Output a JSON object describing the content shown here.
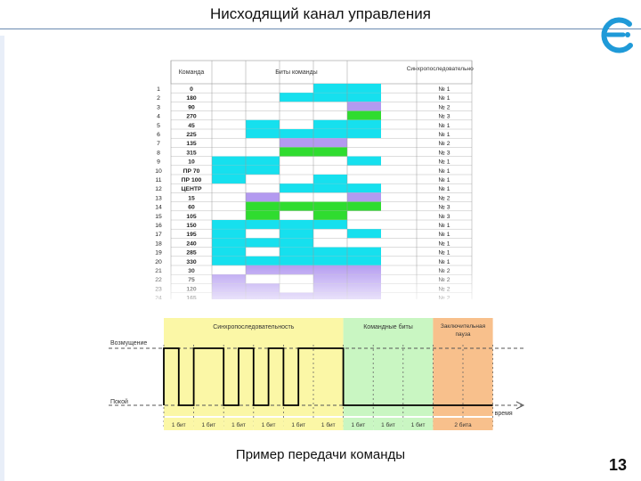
{
  "slide": {
    "title": "Нисходящий канал управления",
    "caption": "Пример передачи команды",
    "page_number": "13"
  },
  "colors": {
    "cyan": "#16e0ee",
    "purple": "#b39af0",
    "green": "#2fdc2f",
    "sync_bg": "#fbf7a6",
    "cmd_bg": "#c9f6c2",
    "pause_bg": "#f8c08c",
    "logo": "#1f9ad8"
  },
  "table": {
    "headers": [
      "Команда",
      "Биты команды",
      "Синхропоследовательность"
    ],
    "rows": [
      {
        "n": "1",
        "cmd": "0",
        "sync": "№ 1",
        "bits": [
          "",
          "",
          "",
          "c",
          "c"
        ]
      },
      {
        "n": "2",
        "cmd": "180",
        "sync": "№ 1",
        "bits": [
          "",
          "",
          "c",
          "c",
          "c"
        ]
      },
      {
        "n": "3",
        "cmd": "90",
        "sync": "№ 2",
        "bits": [
          "",
          "",
          "",
          "",
          "p"
        ]
      },
      {
        "n": "4",
        "cmd": "270",
        "sync": "№ 3",
        "bits": [
          "",
          "",
          "",
          "",
          "g"
        ]
      },
      {
        "n": "5",
        "cmd": "45",
        "sync": "№ 1",
        "bits": [
          "",
          "c",
          "",
          "c",
          "c"
        ]
      },
      {
        "n": "6",
        "cmd": "225",
        "sync": "№ 1",
        "bits": [
          "",
          "c",
          "c",
          "c",
          "c"
        ]
      },
      {
        "n": "7",
        "cmd": "135",
        "sync": "№ 2",
        "bits": [
          "",
          "",
          "p",
          "p",
          ""
        ]
      },
      {
        "n": "8",
        "cmd": "315",
        "sync": "№ 3",
        "bits": [
          "",
          "",
          "g",
          "g",
          ""
        ]
      },
      {
        "n": "9",
        "cmd": "10",
        "sync": "№ 1",
        "bits": [
          "c",
          "c",
          "",
          "",
          "c"
        ]
      },
      {
        "n": "10",
        "cmd": "ПР 70",
        "sync": "№ 1",
        "bits": [
          "c",
          "c",
          "",
          "",
          ""
        ]
      },
      {
        "n": "11",
        "cmd": "ПР 100",
        "sync": "№ 1",
        "bits": [
          "c",
          "",
          "",
          "c",
          ""
        ]
      },
      {
        "n": "12",
        "cmd": "ЦЕНТР",
        "sync": "№ 1",
        "bits": [
          "",
          "",
          "c",
          "c",
          "c"
        ]
      },
      {
        "n": "13",
        "cmd": "15",
        "sync": "№ 2",
        "bits": [
          "",
          "p",
          "",
          "",
          "p"
        ]
      },
      {
        "n": "14",
        "cmd": "60",
        "sync": "№ 3",
        "bits": [
          "",
          "g",
          "g",
          "g",
          "g"
        ]
      },
      {
        "n": "15",
        "cmd": "105",
        "sync": "№ 3",
        "bits": [
          "",
          "g",
          "",
          "g",
          ""
        ]
      },
      {
        "n": "16",
        "cmd": "150",
        "sync": "№ 1",
        "bits": [
          "c",
          "c",
          "c",
          "c",
          ""
        ]
      },
      {
        "n": "17",
        "cmd": "195",
        "sync": "№ 1",
        "bits": [
          "c",
          "",
          "c",
          "",
          "c"
        ]
      },
      {
        "n": "18",
        "cmd": "240",
        "sync": "№ 1",
        "bits": [
          "c",
          "c",
          "c",
          "",
          ""
        ]
      },
      {
        "n": "19",
        "cmd": "285",
        "sync": "№ 1",
        "bits": [
          "c",
          "",
          "c",
          "c",
          "c"
        ]
      },
      {
        "n": "20",
        "cmd": "330",
        "sync": "№ 1",
        "bits": [
          "c",
          "c",
          "c",
          "c",
          "c"
        ]
      },
      {
        "n": "21",
        "cmd": "30",
        "sync": "№ 2",
        "bits": [
          "",
          "p",
          "p",
          "p",
          "p"
        ]
      },
      {
        "n": "22",
        "cmd": "75",
        "sync": "№ 2",
        "bits": [
          "p",
          "",
          "",
          "p",
          "p"
        ]
      },
      {
        "n": "23",
        "cmd": "120",
        "sync": "№ 2",
        "bits": [
          "p",
          "p",
          "",
          "p",
          "p"
        ]
      },
      {
        "n": "24",
        "cmd": "165",
        "sync": "№ 2",
        "bits": [
          "p",
          "p",
          "p",
          "p",
          "p"
        ]
      }
    ]
  },
  "diagram": {
    "sections": {
      "sync": "Синхропоследовательность",
      "command": "Командные биты",
      "pause": "Заключительная пауза"
    },
    "levels": {
      "excitation": "Возмущение",
      "rest": "Покой",
      "time": "время"
    },
    "bit_labels": [
      "1 бит",
      "1 бит",
      "1 бит",
      "1 бит",
      "1 бит",
      "1 бит",
      "1 бит",
      "1 бит",
      "1 бит",
      "2 бита"
    ],
    "signal_bits": [
      1,
      0,
      1,
      1,
      0,
      1,
      0,
      1,
      0,
      1,
      1,
      1,
      0,
      0
    ],
    "ends_with_pause": true
  }
}
